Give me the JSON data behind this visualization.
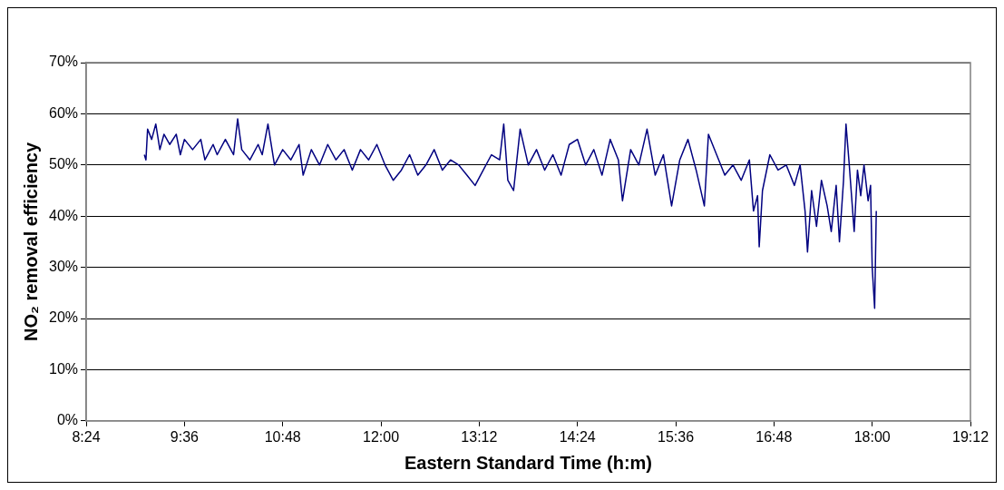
{
  "chart_data": {
    "type": "line",
    "xlabel": "Eastern Standard Time (h:m)",
    "ylabel": "NO₂ removal efficiency",
    "xlim": [
      8.4,
      19.2
    ],
    "xticks": [
      {
        "value": 8.4,
        "label": "8:24"
      },
      {
        "value": 9.6,
        "label": "9:36"
      },
      {
        "value": 10.8,
        "label": "10:48"
      },
      {
        "value": 12,
        "label": "12:00"
      },
      {
        "value": 13.2,
        "label": "13:12"
      },
      {
        "value": 14.4,
        "label": "14:24"
      },
      {
        "value": 15.6,
        "label": "15:36"
      },
      {
        "value": 16.8,
        "label": "16:48"
      },
      {
        "value": 18,
        "label": "18:00"
      },
      {
        "value": 19.2,
        "label": "19:12"
      }
    ],
    "ylim": [
      0,
      70
    ],
    "yticks": [
      {
        "value": 0,
        "label": "0%"
      },
      {
        "value": 10,
        "label": "10%"
      },
      {
        "value": 20,
        "label": "20%"
      },
      {
        "value": 30,
        "label": "30%"
      },
      {
        "value": 40,
        "label": "40%"
      },
      {
        "value": 50,
        "label": "50%"
      },
      {
        "value": 60,
        "label": "60%"
      },
      {
        "value": 70,
        "label": "70%"
      }
    ],
    "grid": "y",
    "legend": false,
    "marker": "none",
    "line_style": "solid",
    "series": [
      {
        "color": "#000080",
        "x": [
          9.11,
          9.13,
          9.15,
          9.2,
          9.25,
          9.3,
          9.35,
          9.42,
          9.5,
          9.55,
          9.6,
          9.7,
          9.8,
          9.85,
          9.95,
          10.0,
          10.1,
          10.2,
          10.25,
          10.3,
          10.4,
          10.5,
          10.55,
          10.62,
          10.7,
          10.8,
          10.9,
          11.0,
          11.05,
          11.15,
          11.25,
          11.35,
          11.45,
          11.55,
          11.65,
          11.75,
          11.85,
          11.95,
          12.05,
          12.15,
          12.25,
          12.35,
          12.45,
          12.55,
          12.65,
          12.75,
          12.85,
          12.95,
          13.05,
          13.15,
          13.25,
          13.35,
          13.45,
          13.5,
          13.55,
          13.62,
          13.7,
          13.8,
          13.9,
          14.0,
          14.1,
          14.2,
          14.3,
          14.4,
          14.5,
          14.6,
          14.7,
          14.8,
          14.9,
          14.95,
          15.05,
          15.15,
          15.25,
          15.35,
          15.45,
          15.55,
          15.65,
          15.75,
          15.85,
          15.95,
          16.0,
          16.1,
          16.2,
          16.3,
          16.4,
          16.5,
          16.55,
          16.6,
          16.62,
          16.66,
          16.75,
          16.85,
          16.95,
          17.05,
          17.12,
          17.18,
          17.21,
          17.26,
          17.32,
          17.38,
          17.45,
          17.5,
          17.56,
          17.6,
          17.65,
          17.68,
          17.72,
          17.78,
          17.82,
          17.86,
          17.9,
          17.95,
          17.98,
          18.0,
          18.03,
          18.05
        ],
        "values": [
          52,
          51,
          57,
          55,
          58,
          53,
          56,
          54,
          56,
          52,
          55,
          53,
          55,
          51,
          54,
          52,
          55,
          52,
          59,
          53,
          51,
          54,
          52,
          58,
          50,
          53,
          51,
          54,
          48,
          53,
          50,
          54,
          51,
          53,
          49,
          53,
          51,
          54,
          50,
          47,
          49,
          52,
          48,
          50,
          53,
          49,
          51,
          50,
          48,
          46,
          49,
          52,
          51,
          58,
          47,
          45,
          57,
          50,
          53,
          49,
          52,
          48,
          54,
          55,
          50,
          53,
          48,
          55,
          51,
          43,
          53,
          50,
          57,
          48,
          52,
          42,
          51,
          55,
          49,
          42,
          56,
          52,
          48,
          50,
          47,
          51,
          41,
          44,
          34,
          45,
          52,
          49,
          50,
          46,
          50,
          41,
          33,
          45,
          38,
          47,
          42,
          37,
          46,
          35,
          47,
          58,
          50,
          37,
          49,
          44,
          50,
          43,
          46,
          30,
          22,
          41
        ]
      }
    ]
  }
}
